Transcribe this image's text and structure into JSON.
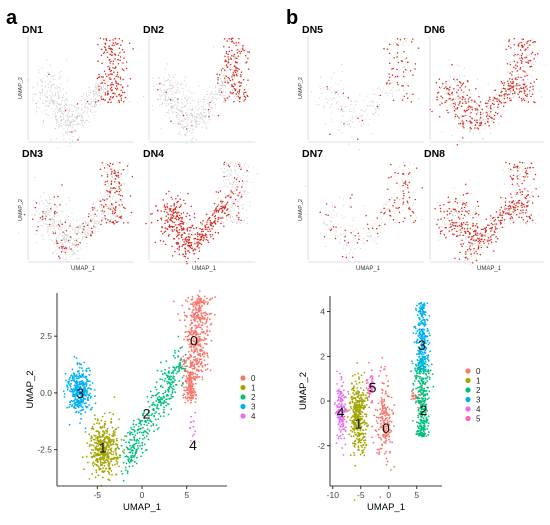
{
  "panel_letters": [
    "a",
    "b"
  ],
  "colors": {
    "expr_high": "#d62a1f",
    "expr_low": "#c8c8c8",
    "cluster": [
      "#f8766d",
      "#a3a500",
      "#00bf7d",
      "#00b0f6",
      "#e76bf3",
      "#ff61c3"
    ]
  },
  "chart_data": [
    {
      "type": "scatter",
      "group": "feature-plots-a",
      "panels": [
        {
          "title": "DN1",
          "xlabel": "",
          "ylabel": "UMAP_2",
          "expression": "high in cluster 0, few cells in cluster 4"
        },
        {
          "title": "DN2",
          "xlabel": "",
          "ylabel": "",
          "expression": "high in cluster 0"
        },
        {
          "title": "DN3",
          "xlabel": "UMAP_1",
          "ylabel": "UMAP_2",
          "expression": "scattered, higher in cluster 0"
        },
        {
          "title": "DN4",
          "xlabel": "UMAP_1",
          "ylabel": "",
          "expression": "high in clusters 1, 2, 3"
        }
      ]
    },
    {
      "type": "scatter",
      "group": "feature-plots-b",
      "panels": [
        {
          "title": "DN5",
          "xlabel": "",
          "ylabel": "UMAP_2",
          "expression": "sparse, higher in clusters 2, 3"
        },
        {
          "title": "DN6",
          "xlabel": "",
          "ylabel": "",
          "expression": "moderate across all clusters"
        },
        {
          "title": "DN7",
          "xlabel": "UMAP_1",
          "ylabel": "UMAP_2",
          "expression": "sparse, higher in clusters 2, 3"
        },
        {
          "title": "DN8",
          "xlabel": "UMAP_1",
          "ylabel": "",
          "expression": "moderate across all clusters"
        }
      ]
    },
    {
      "type": "scatter",
      "group": "cluster-umap-a",
      "xlabel": "UMAP_1",
      "ylabel": "UMAP_2",
      "xlim": [
        -9.5,
        9.5
      ],
      "ylim": [
        -4.1,
        4.4
      ],
      "xticks": [
        -5,
        0,
        5
      ],
      "yticks": [
        -2.5,
        0.0,
        2.5
      ],
      "ytick_labels": [
        "-2.5",
        "0.0",
        "2.5"
      ],
      "grid": false,
      "legend": "right",
      "clusters": [
        {
          "label": "0",
          "center": [
            6.2,
            2.5
          ],
          "spread": [
            1.6,
            1.1
          ],
          "label_pos": [
            5.8,
            2.3
          ]
        },
        {
          "label": "1",
          "center": [
            -4.2,
            -2.5
          ],
          "spread": [
            1.5,
            0.8
          ],
          "label_pos": [
            -4.4,
            -2.4
          ]
        },
        {
          "label": "2",
          "center": [
            0.3,
            -1.0
          ],
          "spread": [
            1.6,
            0.9
          ],
          "label_pos": [
            0.5,
            -0.9
          ]
        },
        {
          "label": "3",
          "center": [
            -7.0,
            0.1
          ],
          "spread": [
            1.2,
            0.7
          ],
          "label_pos": [
            -6.9,
            0.0
          ]
        },
        {
          "label": "4",
          "center": [
            5.5,
            -1.8
          ],
          "spread": [
            0.3,
            0.8
          ],
          "label_pos": [
            5.7,
            -2.3
          ]
        }
      ]
    },
    {
      "type": "scatter",
      "group": "cluster-umap-b",
      "xlabel": "UMAP_1",
      "ylabel": "UMAP_2",
      "xlim": [
        -10.5,
        9.5
      ],
      "ylim": [
        -3.8,
        4.7
      ],
      "xticks": [
        -10,
        -5,
        0,
        5
      ],
      "yticks": [
        -2,
        0,
        2,
        4
      ],
      "ytick_labels": [
        "-2",
        "0",
        "2",
        "4"
      ],
      "grid": false,
      "legend": "right",
      "clusters": [
        {
          "label": "0",
          "center": [
            -1.0,
            -1.1
          ],
          "spread": [
            1.0,
            1.1
          ],
          "label_pos": [
            -0.5,
            -1.2
          ]
        },
        {
          "label": "1",
          "center": [
            -5.5,
            -0.7
          ],
          "spread": [
            1.5,
            1.1
          ],
          "label_pos": [
            -5.4,
            -1.0
          ]
        },
        {
          "label": "2",
          "center": [
            6.0,
            0.3
          ],
          "spread": [
            1.4,
            1.5
          ],
          "label_pos": [
            6.2,
            -0.4
          ]
        },
        {
          "label": "3",
          "center": [
            6.0,
            2.7
          ],
          "spread": [
            1.0,
            1.0
          ],
          "label_pos": [
            5.9,
            2.5
          ]
        },
        {
          "label": "4",
          "center": [
            -8.5,
            -0.4
          ],
          "spread": [
            0.8,
            0.9
          ],
          "label_pos": [
            -8.6,
            -0.5
          ]
        },
        {
          "label": "5",
          "center": [
            -3.2,
            0.7
          ],
          "spread": [
            0.8,
            0.5
          ],
          "label_pos": [
            -2.9,
            0.6
          ]
        }
      ]
    }
  ]
}
